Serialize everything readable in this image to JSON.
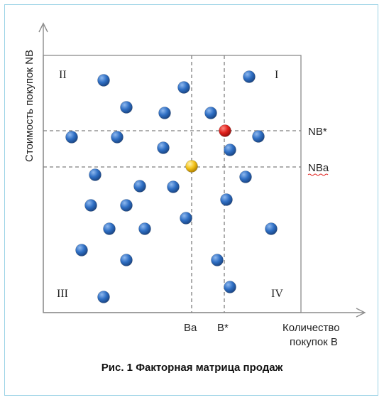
{
  "figure": {
    "y_axis_label": "Стоимость покупок NB",
    "x_axis_label_line1": "Количество",
    "x_axis_label_line2": "покупок B",
    "caption": "Рис. 1 Факторная матрица продаж",
    "threshold_labels": {
      "nb_star": "NB*",
      "nb_a": "NBa",
      "b_a": "Ba",
      "b_star": "B*"
    },
    "quadrants": {
      "top_left": "II",
      "top_right": "I",
      "bottom_left": "III",
      "bottom_right": "IV"
    },
    "colors": {
      "point": "#2f6fc4",
      "point_highlight_star": "#e0201c",
      "point_highlight_a": "#f3c21a",
      "dashed_line": "#7f7f7f",
      "frame": "#9bd3e6"
    }
  }
}
